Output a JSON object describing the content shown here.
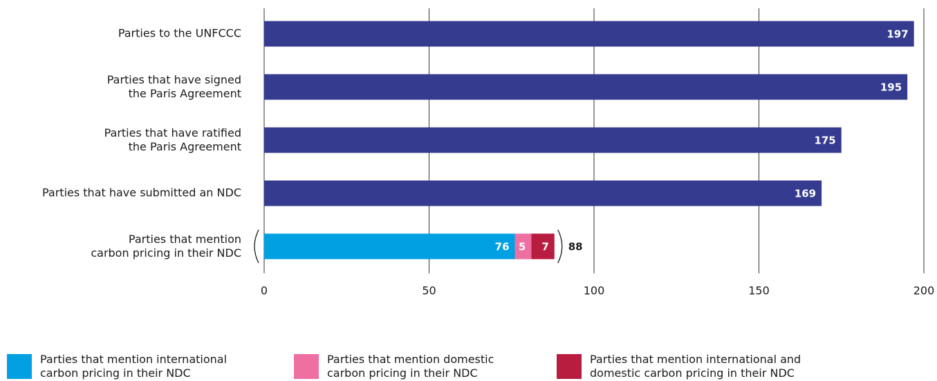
{
  "chart_data": {
    "type": "bar",
    "orientation": "horizontal",
    "stacked": true,
    "categories": [
      "Parties to the UNFCCC",
      "Parties that have signed\nthe Paris Agreement",
      "Parties that have ratified\nthe Paris Agreement",
      "Parties that have submitted an NDC",
      "Parties that mention\ncarbon pricing in their NDC"
    ],
    "series": [
      {
        "color": "#353b8e",
        "values": [
          197,
          195,
          175,
          169,
          null
        ]
      },
      {
        "name": "Parties that mention international\ncarbon pricing in their NDC",
        "color": "#00a0e3",
        "values": [
          null,
          null,
          null,
          null,
          76
        ]
      },
      {
        "name": "Parties that mention domestic\ncarbon pricing in their NDC",
        "color": "#ee6fa2",
        "values": [
          null,
          null,
          null,
          null,
          5
        ]
      },
      {
        "name": "Parties that mention international and\ndomestic carbon pricing in their NDC",
        "color": "#b81c3e",
        "values": [
          null,
          null,
          null,
          null,
          7
        ]
      }
    ],
    "totals": [
      null,
      null,
      null,
      null,
      88
    ],
    "xlim": [
      0,
      200
    ],
    "xticks": [
      0,
      50,
      100,
      150,
      200
    ],
    "grid": true,
    "legend": "bottom"
  }
}
